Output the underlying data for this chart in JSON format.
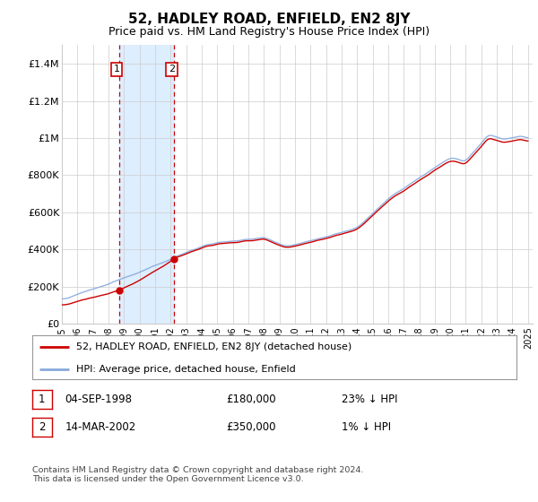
{
  "title": "52, HADLEY ROAD, ENFIELD, EN2 8JY",
  "subtitle": "Price paid vs. HM Land Registry's House Price Index (HPI)",
  "ylabel_ticks": [
    "£0",
    "£200K",
    "£400K",
    "£600K",
    "£800K",
    "£1M",
    "£1.2M",
    "£1.4M"
  ],
  "ytick_values": [
    0,
    200000,
    400000,
    600000,
    800000,
    1000000,
    1200000,
    1400000
  ],
  "ylim": [
    0,
    1500000
  ],
  "xlim_start": 1995.0,
  "xlim_end": 2025.3,
  "t1_x": 1998.67,
  "t1_price": 180000,
  "t2_x": 2002.21,
  "t2_price": 350000,
  "red_line_color": "#cc0000",
  "blue_line_color": "#88aadd",
  "shade_color": "#ddeeff",
  "legend_label_red": "52, HADLEY ROAD, ENFIELD, EN2 8JY (detached house)",
  "legend_label_blue": "HPI: Average price, detached house, Enfield",
  "annotation1_date": "04-SEP-1998",
  "annotation1_price": "£180,000",
  "annotation1_hpi": "23% ↓ HPI",
  "annotation2_date": "14-MAR-2002",
  "annotation2_price": "£350,000",
  "annotation2_hpi": "1% ↓ HPI",
  "footer": "Contains HM Land Registry data © Crown copyright and database right 2024.\nThis data is licensed under the Open Government Licence v3.0.",
  "title_fontsize": 11,
  "subtitle_fontsize": 9,
  "tick_fontsize": 8,
  "background_color": "#ffffff",
  "grid_color": "#cccccc"
}
